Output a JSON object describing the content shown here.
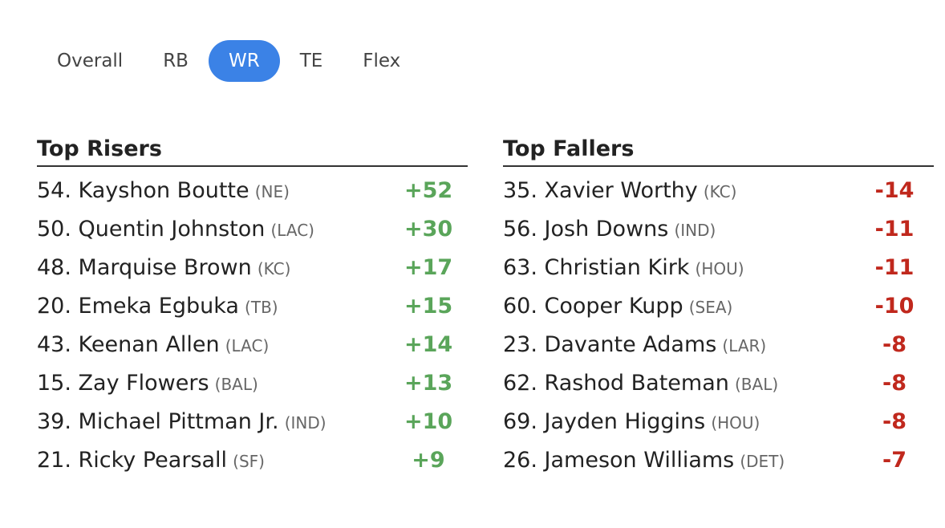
{
  "tabs": [
    {
      "label": "Overall",
      "active": false
    },
    {
      "label": "RB",
      "active": false
    },
    {
      "label": "WR",
      "active": true
    },
    {
      "label": "TE",
      "active": false
    },
    {
      "label": "Flex",
      "active": false
    }
  ],
  "risers": {
    "title": "Top Risers",
    "rows": [
      {
        "name": "54. Kayshon Boutte",
        "team": "(NE)",
        "change": "+52"
      },
      {
        "name": "50. Quentin Johnston",
        "team": "(LAC)",
        "change": "+30"
      },
      {
        "name": "48. Marquise Brown",
        "team": "(KC)",
        "change": "+17"
      },
      {
        "name": "20. Emeka Egbuka",
        "team": "(TB)",
        "change": "+15"
      },
      {
        "name": "43. Keenan Allen",
        "team": "(LAC)",
        "change": "+14"
      },
      {
        "name": "15. Zay Flowers",
        "team": "(BAL)",
        "change": "+13"
      },
      {
        "name": "39. Michael Pittman Jr.",
        "team": "(IND)",
        "change": "+10"
      },
      {
        "name": "21. Ricky Pearsall",
        "team": "(SF)",
        "change": "+9"
      }
    ]
  },
  "fallers": {
    "title": "Top Fallers",
    "rows": [
      {
        "name": "35. Xavier Worthy",
        "team": "(KC)",
        "change": "-14"
      },
      {
        "name": "56. Josh Downs",
        "team": "(IND)",
        "change": "-11"
      },
      {
        "name": "63. Christian Kirk",
        "team": "(HOU)",
        "change": "-11"
      },
      {
        "name": "60. Cooper Kupp",
        "team": "(SEA)",
        "change": "-10"
      },
      {
        "name": "23. Davante Adams",
        "team": "(LAR)",
        "change": "-8"
      },
      {
        "name": "62. Rashod Bateman",
        "team": "(BAL)",
        "change": "-8"
      },
      {
        "name": "69. Jayden Higgins",
        "team": "(HOU)",
        "change": "-8"
      },
      {
        "name": "26. Jameson Williams",
        "team": "(DET)",
        "change": "-7"
      }
    ]
  },
  "colors": {
    "active_tab": "#3b82e6",
    "riser": "#5aa55a",
    "faller": "#c0281d"
  }
}
